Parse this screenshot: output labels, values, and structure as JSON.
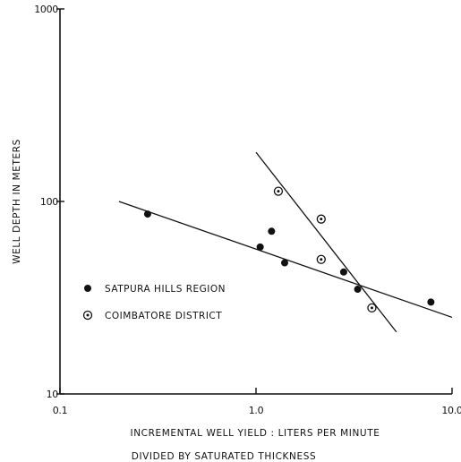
{
  "chart_data": {
    "type": "scatter",
    "x_scale": "log",
    "y_scale": "log",
    "xlim": [
      0.1,
      10.0
    ],
    "ylim": [
      10,
      1000
    ],
    "x_ticks": [
      {
        "value": 0.1,
        "label": "0.1"
      },
      {
        "value": 1.0,
        "label": "1.0"
      },
      {
        "value": 10.0,
        "label": "10.0"
      }
    ],
    "y_ticks": [
      {
        "value": 10,
        "label": "10"
      },
      {
        "value": 100,
        "label": "100"
      },
      {
        "value": 1000,
        "label": "1000"
      }
    ],
    "xlabel_line1": "INCREMENTAL WELL YIELD :  LITERS PER MINUTE",
    "xlabel_line2": "DIVIDED  BY  SATURATED  THICKNESS",
    "ylabel": "WELL  DEPTH  IN  METERS",
    "grid": false,
    "legend_position": "left-middle",
    "series": [
      {
        "name": "SATPURA HILLS REGION",
        "marker": "filled-circle",
        "points": [
          {
            "x": 0.28,
            "y": 86
          },
          {
            "x": 1.05,
            "y": 58
          },
          {
            "x": 1.2,
            "y": 70
          },
          {
            "x": 1.4,
            "y": 48
          },
          {
            "x": 2.8,
            "y": 43
          },
          {
            "x": 3.3,
            "y": 35
          },
          {
            "x": 7.8,
            "y": 30
          }
        ],
        "trend_line": {
          "from": {
            "x": 0.2,
            "y": 100
          },
          "to": {
            "x": 10.0,
            "y": 25
          }
        }
      },
      {
        "name": "COIMBATORE DISTRICT",
        "marker": "circle-dot",
        "points": [
          {
            "x": 1.3,
            "y": 113
          },
          {
            "x": 2.15,
            "y": 81
          },
          {
            "x": 2.15,
            "y": 50
          },
          {
            "x": 3.9,
            "y": 28
          }
        ],
        "trend_line": {
          "from": {
            "x": 1.0,
            "y": 180
          },
          "to": {
            "x": 5.2,
            "y": 21
          }
        }
      }
    ]
  }
}
